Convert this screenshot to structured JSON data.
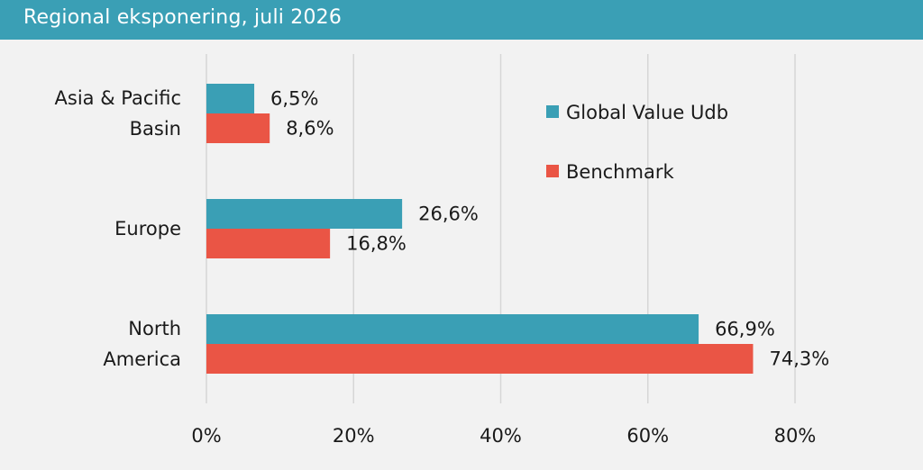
{
  "header": {
    "title": "Regional eksponering, juli 2026"
  },
  "colors": {
    "header_bg": "#3a9fb5",
    "series1": "#3a9fb5",
    "series2": "#ea5545"
  },
  "chart_data": {
    "type": "bar",
    "orientation": "horizontal",
    "categories": [
      {
        "lines": [
          "Asia & Pacific",
          "Basin"
        ]
      },
      {
        "lines": [
          "Europe"
        ]
      },
      {
        "lines": [
          "North",
          "America"
        ]
      }
    ],
    "series": [
      {
        "name": "Global Value Udb",
        "color": "#3a9fb5",
        "values": [
          6.5,
          26.6,
          66.9
        ],
        "labels": [
          "6,5%",
          "26,6%",
          "66,9%"
        ]
      },
      {
        "name": "Benchmark",
        "color": "#ea5545",
        "values": [
          8.6,
          16.8,
          74.3
        ],
        "labels": [
          "8,6%",
          "16,8%",
          "74,3%"
        ]
      }
    ],
    "xlim": [
      0,
      80
    ],
    "x_ticks": [
      {
        "value": 0,
        "label": "0%"
      },
      {
        "value": 20,
        "label": "20%"
      },
      {
        "value": 40,
        "label": "40%"
      },
      {
        "value": 60,
        "label": "60%"
      },
      {
        "value": 80,
        "label": "80%"
      }
    ],
    "grid": true,
    "legend_position": "top-right"
  }
}
